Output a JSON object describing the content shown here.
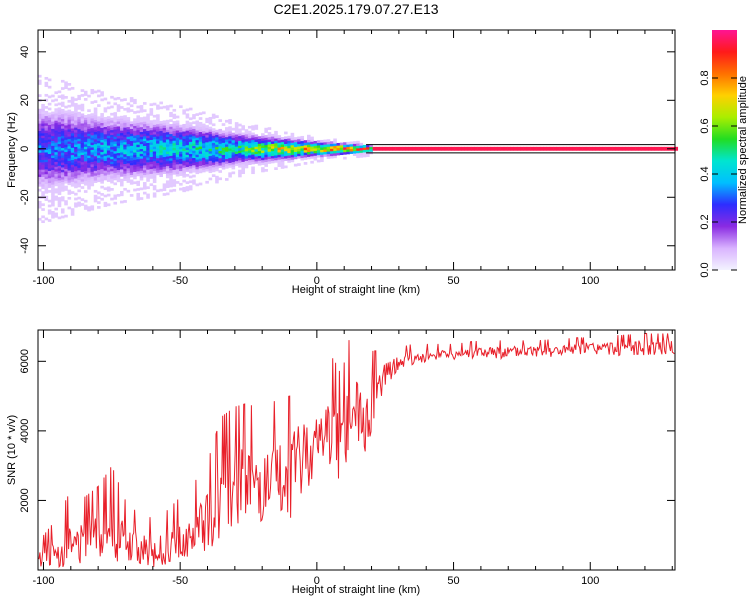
{
  "title": "C2E1.2025.179.07.27.E13",
  "colors": {
    "snr_line": "#e8202a",
    "colorbar": [
      "#f3f3ff",
      "#d9b3ff",
      "#8a2be2",
      "#2d2dff",
      "#00bfff",
      "#00e5d0",
      "#22dd22",
      "#aaee00",
      "#ffd000",
      "#ff7000",
      "#ff1a1a",
      "#ff1493"
    ]
  },
  "chart_data": [
    {
      "type": "heatmap",
      "xlabel": "Height of straight line (km)",
      "ylabel": "Frequency (Hz)",
      "xlim": [
        -102,
        131
      ],
      "ylim": [
        -50,
        49
      ],
      "x_ticks": [
        -100,
        -50,
        0,
        50,
        100
      ],
      "y_ticks": [
        -40,
        -20,
        0,
        20,
        40
      ],
      "grid": false,
      "description_values": {
        "center_frequency_hz": 0,
        "spread_hz_at_x": [
          {
            "x": -100,
            "spread": 12
          },
          {
            "x": -75,
            "spread": 9
          },
          {
            "x": -50,
            "spread": 7
          },
          {
            "x": -25,
            "spread": 4
          },
          {
            "x": 0,
            "spread": 2
          },
          {
            "x": 20,
            "spread": 1
          },
          {
            "x": 131,
            "spread": 1
          }
        ],
        "dominant_amplitude_at_x": [
          {
            "x": -100,
            "amp": 0.35
          },
          {
            "x": -60,
            "amp": 0.45
          },
          {
            "x": -30,
            "amp": 0.55
          },
          {
            "x": -10,
            "amp": 0.8
          },
          {
            "x": 15,
            "amp": 0.95
          },
          {
            "x": 131,
            "amp": 0.95
          }
        ]
      },
      "colorbar": {
        "label": "Normalized spectral amplitude",
        "range": [
          0,
          1
        ],
        "ticks": [
          "0.0",
          "0.2",
          "0.4",
          "0.6",
          "0.8"
        ]
      }
    },
    {
      "type": "line",
      "xlabel": "Height of straight line (km)",
      "ylabel": "SNR (10 * v/v)",
      "xlim": [
        -102,
        131
      ],
      "ylim": [
        0,
        6900
      ],
      "x_ticks": [
        -100,
        -50,
        0,
        50,
        100
      ],
      "y_ticks": [
        2000,
        4000,
        6000
      ],
      "grid": false,
      "series": [
        {
          "x": [
            -102,
            -95,
            -90,
            -85,
            -80,
            -75,
            -70,
            -65,
            -60,
            -55,
            -50,
            -45,
            -40,
            -35,
            -30,
            -25,
            -20,
            -15,
            -10,
            -5,
            0,
            3,
            6,
            9,
            12,
            15,
            18,
            20,
            23,
            26,
            30,
            35,
            40,
            50,
            60,
            70,
            80,
            90,
            100,
            110,
            120,
            131
          ],
          "values": [
            300,
            500,
            700,
            800,
            950,
            1000,
            800,
            600,
            500,
            600,
            800,
            1000,
            1400,
            1900,
            2300,
            2400,
            2200,
            2300,
            2600,
            3300,
            3600,
            4100,
            3800,
            3600,
            4500,
            4300,
            4100,
            4700,
            5300,
            5700,
            5950,
            6050,
            6150,
            6200,
            6250,
            6250,
            6300,
            6300,
            6350,
            6350,
            6400,
            6400
          ],
          "upper": [
            800,
            1500,
            2300,
            2100,
            2400,
            3000,
            2000,
            1600,
            1500,
            1700,
            2100,
            2500,
            3100,
            4400,
            4700,
            4800,
            4500,
            4900,
            5000,
            5100,
            5200,
            5900,
            6100,
            5600,
            6700,
            6400,
            6100,
            6300,
            6300,
            6400,
            6400,
            6500,
            6500,
            6500,
            6600,
            6600,
            6600,
            6650,
            6700,
            6750,
            6800,
            6800
          ],
          "lower": [
            0,
            0,
            0,
            100,
            100,
            100,
            0,
            0,
            0,
            0,
            0,
            100,
            200,
            400,
            600,
            700,
            600,
            500,
            700,
            1100,
            2000,
            2500,
            2000,
            1900,
            1800,
            2600,
            3200,
            3500,
            4300,
            5200,
            5600,
            5800,
            5900,
            5900,
            6000,
            5950,
            6000,
            6000,
            6000,
            6050,
            6000,
            6100
          ]
        }
      ]
    }
  ]
}
